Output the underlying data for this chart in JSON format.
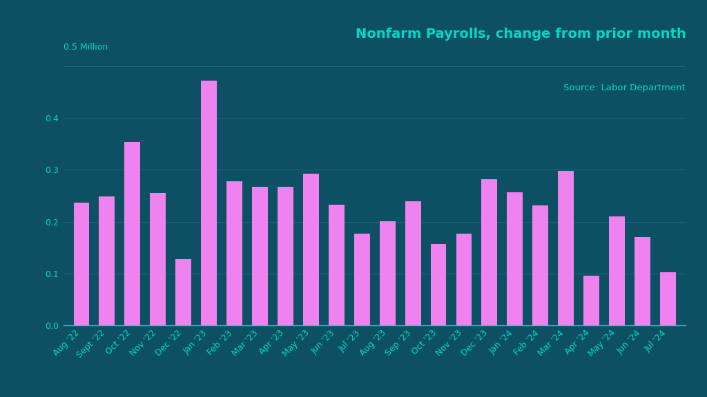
{
  "categories": [
    "Aug '22",
    "Sept '22",
    "Oct '22",
    "Nov '22",
    "Dec '22",
    "Jan '23",
    "Feb '23",
    "Mar '23",
    "Apr '23",
    "May '23",
    "Jun '23",
    "Jul '23",
    "Aug '23",
    "Sep '23",
    "Oct '23",
    "Nov '23",
    "Dec '23",
    "Jan '24",
    "Feb '24",
    "Mar '24",
    "Apr '24",
    "May '24",
    "Jun '24",
    "Jul '24"
  ],
  "values": [
    0.237,
    0.249,
    0.354,
    0.255,
    0.128,
    0.472,
    0.278,
    0.267,
    0.267,
    0.292,
    0.233,
    0.177,
    0.201,
    0.24,
    0.157,
    0.177,
    0.282,
    0.256,
    0.231,
    0.298,
    0.096,
    0.21,
    0.17,
    0.103
  ],
  "bar_color": "#ee82ee",
  "background_color": "#0d4f63",
  "text_color": "#00d9c8",
  "grid_color": "#1a6478",
  "title": "Nonfarm Payrolls, change from prior month",
  "source": "Source: Labor Department",
  "ylabel_top": "0.5 Million",
  "ylim": [
    0,
    0.52
  ],
  "yticks": [
    0,
    0.1,
    0.2,
    0.3,
    0.4
  ],
  "title_fontsize": 14,
  "source_fontsize": 9.5,
  "axis_label_fontsize": 9,
  "tick_fontsize": 9
}
